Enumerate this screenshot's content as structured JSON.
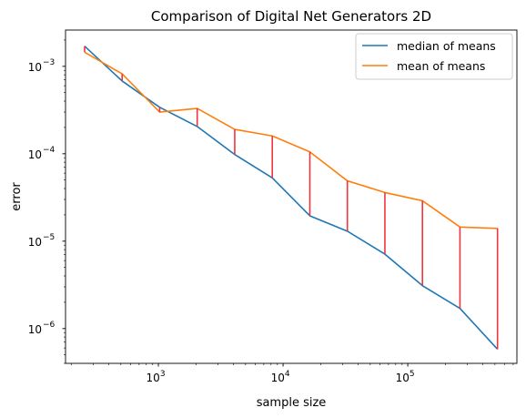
{
  "chart_data": {
    "type": "line",
    "title": "Comparison of Digital Net Generators 2D",
    "xlabel": "sample size",
    "ylabel": "error",
    "xscale": "log",
    "yscale": "log",
    "xlim": [
      180,
      750000
    ],
    "ylim": [
      4e-07,
      0.0026
    ],
    "grid": false,
    "legend_position": "top-right",
    "x": [
      256,
      512,
      1024,
      2048,
      4096,
      8192,
      16384,
      32768,
      65536,
      131072,
      262144,
      524288
    ],
    "series": [
      {
        "name": "median of means",
        "color": "#1f77b4",
        "values": [
          0.0017,
          0.00068,
          0.00034,
          0.000205,
          9.8e-05,
          5.3e-05,
          1.95e-05,
          1.3e-05,
          7.1e-06,
          3.1e-06,
          1.7e-06,
          5.8e-07
        ]
      },
      {
        "name": "mean of means",
        "color": "#ff7f0e",
        "values": [
          0.00145,
          0.00082,
          0.0003,
          0.00033,
          0.00019,
          0.00016,
          0.000105,
          4.9e-05,
          3.6e-05,
          2.9e-05,
          1.45e-05,
          1.4e-05
        ]
      }
    ],
    "difference_line_color": "#f0353c",
    "x_major_ticks": [
      {
        "value": 1000,
        "base": "10",
        "exp": "3"
      },
      {
        "value": 10000,
        "base": "10",
        "exp": "4"
      },
      {
        "value": 100000,
        "base": "10",
        "exp": "5"
      }
    ],
    "y_major_ticks": [
      {
        "value": 0.001,
        "base": "10",
        "exp": "−3"
      },
      {
        "value": 0.0001,
        "base": "10",
        "exp": "−4"
      },
      {
        "value": 1e-05,
        "base": "10",
        "exp": "−5"
      },
      {
        "value": 1e-06,
        "base": "10",
        "exp": "−6"
      }
    ]
  }
}
